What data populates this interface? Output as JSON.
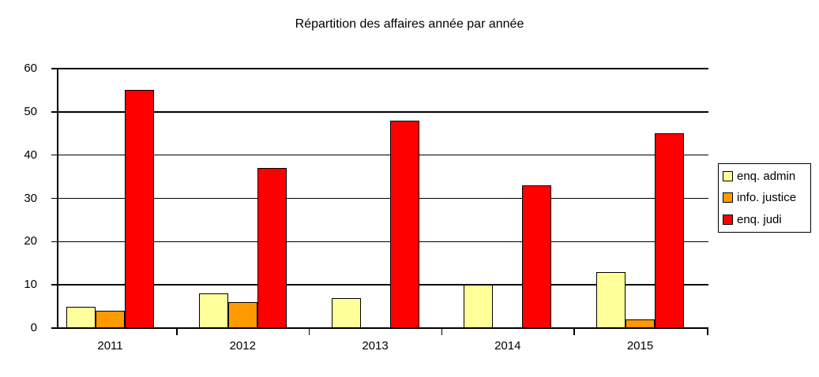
{
  "chart_data": {
    "type": "bar",
    "title": "Répartition des affaires année par année",
    "categories": [
      "2011",
      "2012",
      "2013",
      "2014",
      "2015"
    ],
    "series": [
      {
        "name": "enq. admin",
        "color": "#FFFF99",
        "values": [
          5,
          8,
          7,
          10,
          13
        ]
      },
      {
        "name": "info. justice",
        "color": "#FF9900",
        "values": [
          4,
          6,
          0,
          0,
          2
        ]
      },
      {
        "name": "enq. judi",
        "color": "#FF0000",
        "values": [
          55,
          37,
          48,
          33,
          45
        ]
      }
    ],
    "xlabel": "",
    "ylabel": "",
    "ylim": [
      0,
      60
    ],
    "ytick_step": 10,
    "y_ticks": [
      0,
      10,
      20,
      30,
      40,
      50,
      60
    ],
    "grid": true,
    "legend_position": "right"
  },
  "colors": {
    "background": "#FFFFFF",
    "text": "#000000",
    "axis": "#000000",
    "grid": "#000000",
    "bar_border": "#000000",
    "legend_border": "#000000"
  }
}
